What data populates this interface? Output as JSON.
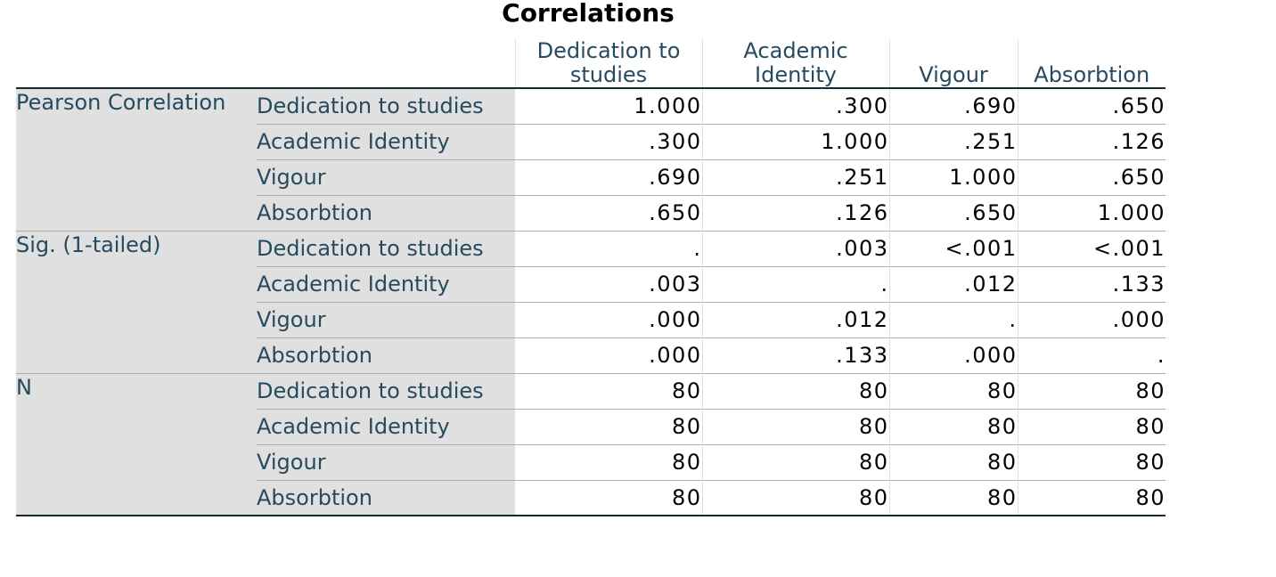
{
  "title": "Correlations",
  "columns": [
    [
      "Dedication to",
      "studies"
    ],
    [
      "Academic",
      "Identity"
    ],
    [
      "",
      "Vigour"
    ],
    [
      "",
      "Absorbtion"
    ]
  ],
  "groups": [
    {
      "label": "Pearson Correlation",
      "rows": [
        {
          "label": "Dedication to studies",
          "values": [
            "1.000",
            ".300",
            ".690",
            ".650"
          ]
        },
        {
          "label": "Academic Identity",
          "values": [
            ".300",
            "1.000",
            ".251",
            ".126"
          ]
        },
        {
          "label": "Vigour",
          "values": [
            ".690",
            ".251",
            "1.000",
            ".650"
          ]
        },
        {
          "label": "Absorbtion",
          "values": [
            ".650",
            ".126",
            ".650",
            "1.000"
          ]
        }
      ]
    },
    {
      "label": "Sig. (1-tailed)",
      "rows": [
        {
          "label": "Dedication to studies",
          "values": [
            ".",
            ".003",
            "<.001",
            "<.001"
          ]
        },
        {
          "label": "Academic Identity",
          "values": [
            ".003",
            ".",
            ".012",
            ".133"
          ]
        },
        {
          "label": "Vigour",
          "values": [
            ".000",
            ".012",
            ".",
            ".000"
          ]
        },
        {
          "label": "Absorbtion",
          "values": [
            ".000",
            ".133",
            ".000",
            "."
          ]
        }
      ]
    },
    {
      "label": "N",
      "rows": [
        {
          "label": "Dedication to studies",
          "values": [
            "80",
            "80",
            "80",
            "80"
          ]
        },
        {
          "label": "Academic Identity",
          "values": [
            "80",
            "80",
            "80",
            "80"
          ]
        },
        {
          "label": "Vigour",
          "values": [
            "80",
            "80",
            "80",
            "80"
          ]
        },
        {
          "label": "Absorbtion",
          "values": [
            "80",
            "80",
            "80",
            "80"
          ]
        }
      ]
    }
  ],
  "colors": {
    "header_text": "#264a60",
    "label_background": "#e0e0e0",
    "value_text": "#010205",
    "rule_dark": "#152935"
  }
}
